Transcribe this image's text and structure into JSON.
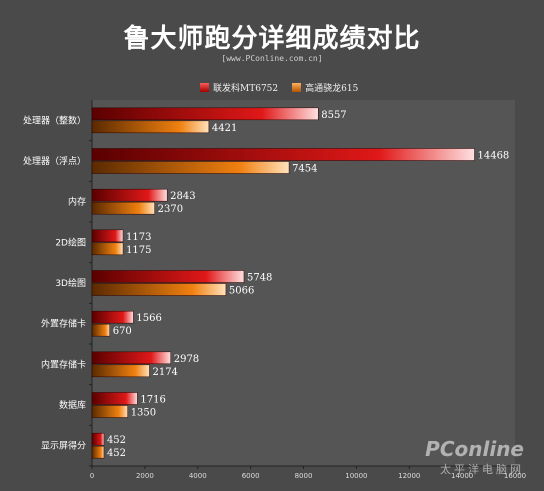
{
  "title": "鲁大师跑分详细成绩对比",
  "subtitle": "[www.PConline.com.cn]",
  "watermark": {
    "logo": "PConline",
    "sub": "太平洋电脑网"
  },
  "chart_data": {
    "type": "bar",
    "orientation": "horizontal",
    "title": "鲁大师跑分详细成绩对比",
    "categories": [
      "处理器（整数）",
      "处理器（浮点）",
      "内存",
      "2D绘图",
      "3D绘图",
      "外置存储卡",
      "内置存储卡",
      "数据库",
      "显示屏得分"
    ],
    "series": [
      {
        "name": "联发科MT6752",
        "color": "#e01010",
        "values": [
          8557,
          14468,
          2843,
          1173,
          5748,
          1566,
          2978,
          1716,
          452
        ]
      },
      {
        "name": "高通骁龙615",
        "color": "#ee7a10",
        "values": [
          4421,
          7454,
          2370,
          1175,
          5066,
          670,
          2174,
          1350,
          452
        ]
      }
    ],
    "xlim": [
      0,
      16000
    ],
    "xticks": [
      0,
      2000,
      4000,
      6000,
      8000,
      10000,
      12000,
      14000,
      16000
    ],
    "legend": "top"
  }
}
